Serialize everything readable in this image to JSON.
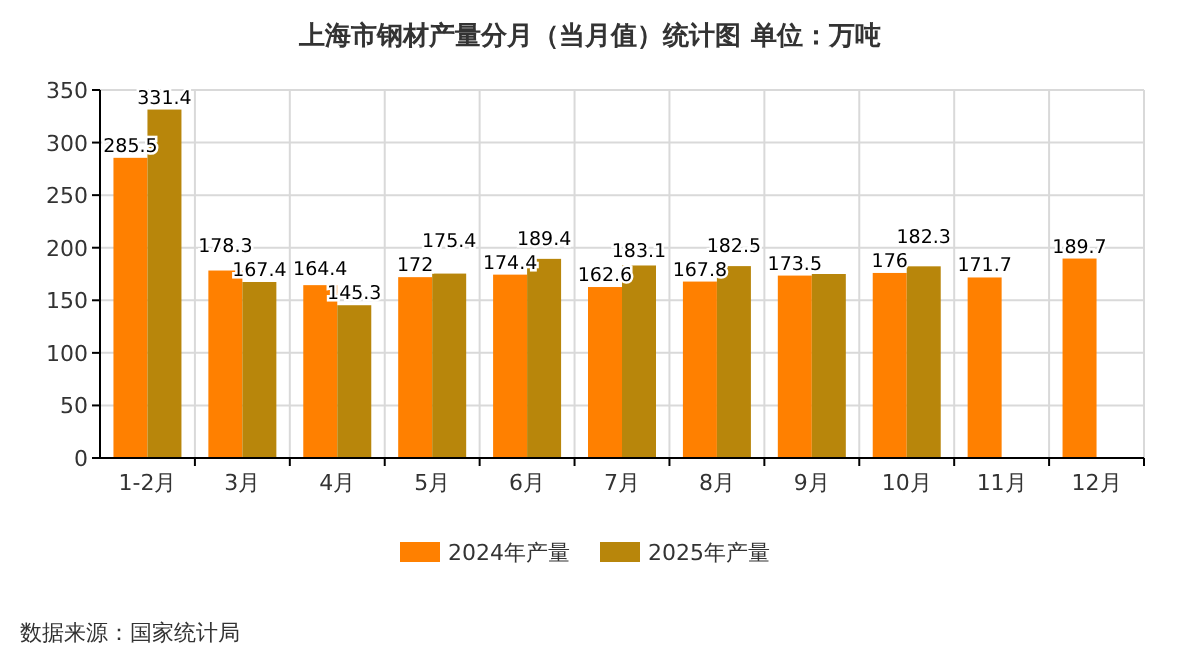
{
  "chart_data": {
    "type": "bar",
    "title": "上海市钢材产量分月（当月值）统计图 单位：万吨",
    "categories": [
      "1-2月",
      "3月",
      "4月",
      "5月",
      "6月",
      "7月",
      "8月",
      "9月",
      "10月",
      "11月",
      "12月"
    ],
    "series": [
      {
        "name": "2024年产量",
        "color": "#ff8000",
        "values": [
          285.5,
          178.3,
          164.4,
          172,
          174.4,
          162.6,
          167.8,
          173.5,
          176,
          171.7,
          189.7
        ],
        "value_labels": [
          "285.5",
          "178.3",
          "164.4",
          "172",
          "174.4",
          "162.6",
          "167.8",
          "173.5",
          "176",
          "171.7",
          "189.7"
        ]
      },
      {
        "name": "2025年产量",
        "color": "#b8860b",
        "values": [
          331.4,
          167.4,
          145.3,
          175.4,
          189.4,
          183.1,
          182.5,
          175,
          182.3,
          null,
          null
        ],
        "value_labels": [
          "331.4",
          "167.4",
          "145.3",
          "175.4",
          "189.4",
          "183.1",
          "182.5",
          null,
          "182.3",
          null,
          null
        ]
      }
    ],
    "ylim": [
      0,
      350
    ],
    "yticks": [
      0,
      50,
      100,
      150,
      200,
      250,
      300,
      350
    ],
    "grid": true,
    "legend": "bottom",
    "annotations": [
      "数据来源：国家统计局"
    ]
  }
}
